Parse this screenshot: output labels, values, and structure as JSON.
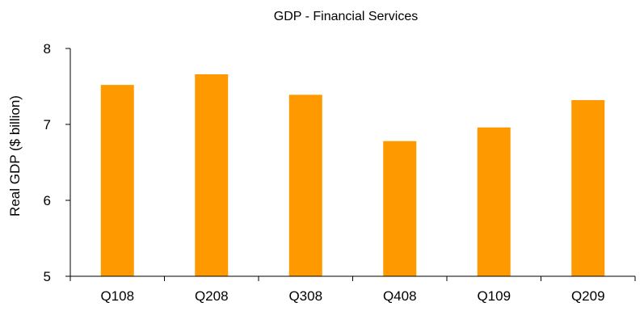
{
  "chart_data": {
    "type": "bar",
    "title": "GDP - Financial Services",
    "xlabel": "",
    "ylabel": "Real GDP ($ billion)",
    "categories": [
      "Q108",
      "Q208",
      "Q308",
      "Q408",
      "Q109",
      "Q209"
    ],
    "values": [
      7.52,
      7.66,
      7.39,
      6.78,
      6.96,
      7.32
    ],
    "ylim": [
      5,
      8
    ],
    "yticks": [
      "5",
      "6",
      "7",
      "8"
    ],
    "grid": false,
    "legend": "none",
    "bar_color": "#FF9900"
  }
}
